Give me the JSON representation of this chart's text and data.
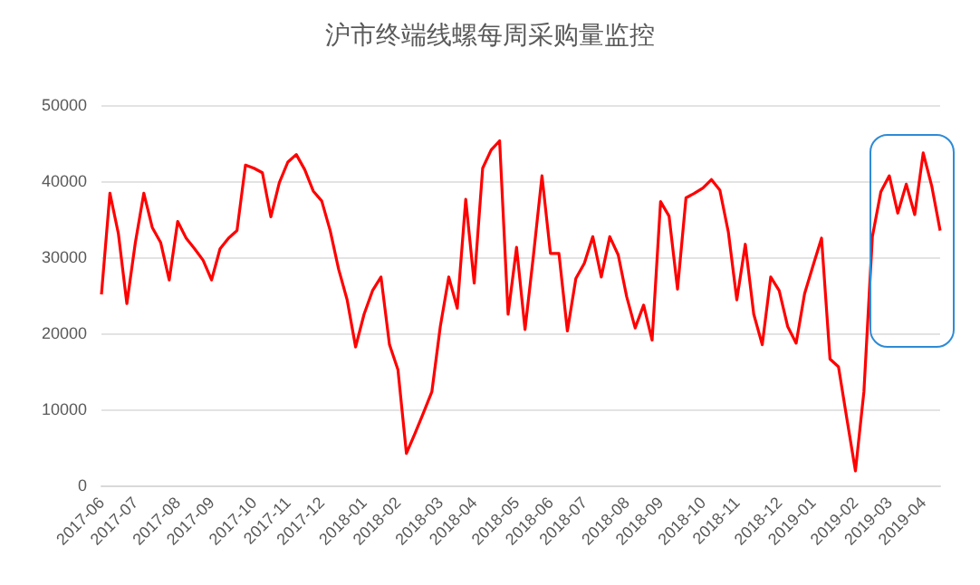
{
  "chart_data": {
    "type": "line",
    "title": "沪市终端线螺每周采购量监控",
    "categories": [
      "2017-06",
      null,
      null,
      null,
      "2017-07",
      null,
      null,
      null,
      null,
      "2017-08",
      null,
      null,
      null,
      "2017-09",
      null,
      null,
      null,
      null,
      "2017-10",
      null,
      null,
      null,
      "2017-11",
      null,
      null,
      null,
      "2017-12",
      null,
      null,
      null,
      null,
      "2018-01",
      null,
      null,
      null,
      "2018-02",
      null,
      null,
      null,
      null,
      "2018-03",
      null,
      null,
      null,
      "2018-04",
      null,
      null,
      null,
      null,
      "2018-05",
      null,
      null,
      null,
      "2018-06",
      null,
      null,
      null,
      "2018-07",
      null,
      null,
      null,
      null,
      "2018-08",
      null,
      null,
      null,
      "2018-09",
      null,
      null,
      null,
      null,
      "2018-10",
      null,
      null,
      null,
      "2018-11",
      null,
      null,
      null,
      null,
      "2018-12",
      null,
      null,
      null,
      "2019-01",
      null,
      null,
      null,
      null,
      "2019-02",
      null,
      null,
      null,
      "2019-03",
      null,
      null,
      null,
      "2019-04",
      null,
      null
    ],
    "series": [
      {
        "color": "#ff0000",
        "values": [
          25100,
          38400,
          33100,
          23900,
          31900,
          38400,
          33900,
          31900,
          27000,
          34700,
          32500,
          31100,
          29600,
          27000,
          31100,
          32500,
          33500,
          42100,
          41700,
          41100,
          35300,
          39800,
          42500,
          43500,
          41500,
          38700,
          37400,
          33500,
          28400,
          24400,
          18200,
          22500,
          25600,
          27400,
          18500,
          15200,
          4200,
          6800,
          9500,
          12300,
          20900,
          27400,
          23300,
          37600,
          26600,
          41700,
          44100,
          45300,
          22500,
          31300,
          20500,
          30300,
          40700,
          30500,
          30500,
          20300,
          27200,
          29200,
          32700,
          27400,
          32700,
          30300,
          24800,
          20700,
          23700,
          19100,
          37300,
          35400,
          25800,
          37800,
          38400,
          39100,
          40200,
          38800,
          33300,
          24400,
          31700,
          22500,
          18500,
          27400,
          25600,
          20900,
          18700,
          25200,
          28900,
          32500,
          16600,
          15600,
          8700,
          1900,
          12300,
          32700,
          38600,
          40700,
          35800,
          39600,
          35600,
          43700,
          39400,
          33500
        ]
      }
    ],
    "ylim": [
      0,
      50000
    ],
    "yticks": [
      0,
      10000,
      20000,
      30000,
      40000,
      50000
    ],
    "grid": "y",
    "marker": "none",
    "line_style": "solid"
  }
}
